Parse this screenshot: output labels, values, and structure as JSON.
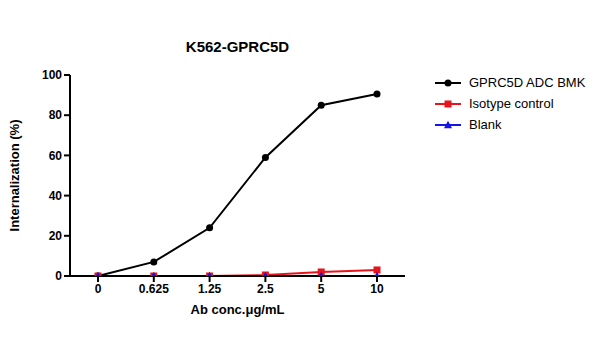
{
  "chart_data": {
    "type": "line",
    "title": "K562-GPRC5D",
    "x_label": "Ab conc.μg/mL",
    "y_label": "Internalization (%)",
    "categories": [
      "0",
      "0.625",
      "1.25",
      "2.5",
      "5",
      "10"
    ],
    "series": [
      {
        "name": "GPRC5D ADC BMK",
        "color": "#000000",
        "marker": "circle",
        "values": [
          0,
          7,
          24,
          59,
          85,
          90.5
        ]
      },
      {
        "name": "Isotype control",
        "color": "#e8141b",
        "marker": "square",
        "values": [
          0,
          0,
          0,
          0.5,
          2,
          3
        ]
      },
      {
        "name": "Blank",
        "color": "#1414e8",
        "marker": "triangle",
        "values": [
          0,
          0,
          0,
          0,
          0,
          0
        ]
      }
    ],
    "ylim": [
      0,
      100
    ],
    "yticks": [
      0,
      20,
      40,
      60,
      80,
      100
    ],
    "grid": false,
    "legend": "right"
  }
}
